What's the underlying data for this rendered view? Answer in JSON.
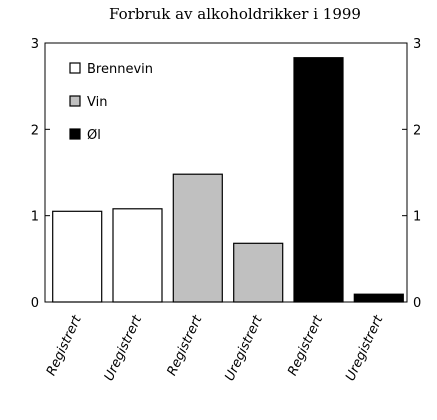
{
  "chart_data": {
    "type": "bar",
    "title": "Forbruk av alkoholdrikker i 1999",
    "xlabel": "",
    "ylabel": "",
    "categories": [
      "Registrert",
      "Uregistrert",
      "Registrert",
      "Uregistrert",
      "Registrert",
      "Uregistrert"
    ],
    "values": [
      1.05,
      1.08,
      1.48,
      0.68,
      2.83,
      0.09
    ],
    "bar_series": [
      0,
      0,
      1,
      1,
      2,
      2
    ],
    "series": [
      {
        "name": "Brennevin",
        "color": "#ffffff"
      },
      {
        "name": "Vin",
        "color": "#c0c0c0"
      },
      {
        "name": "Øl",
        "color": "#000000"
      }
    ],
    "ylim": [
      0,
      3
    ],
    "y_ticks": [
      "0",
      "1",
      "2",
      "3"
    ],
    "y_ticks_right": [
      "0",
      "1",
      "2",
      "3"
    ],
    "grid": false,
    "legend_position": "top-left"
  }
}
